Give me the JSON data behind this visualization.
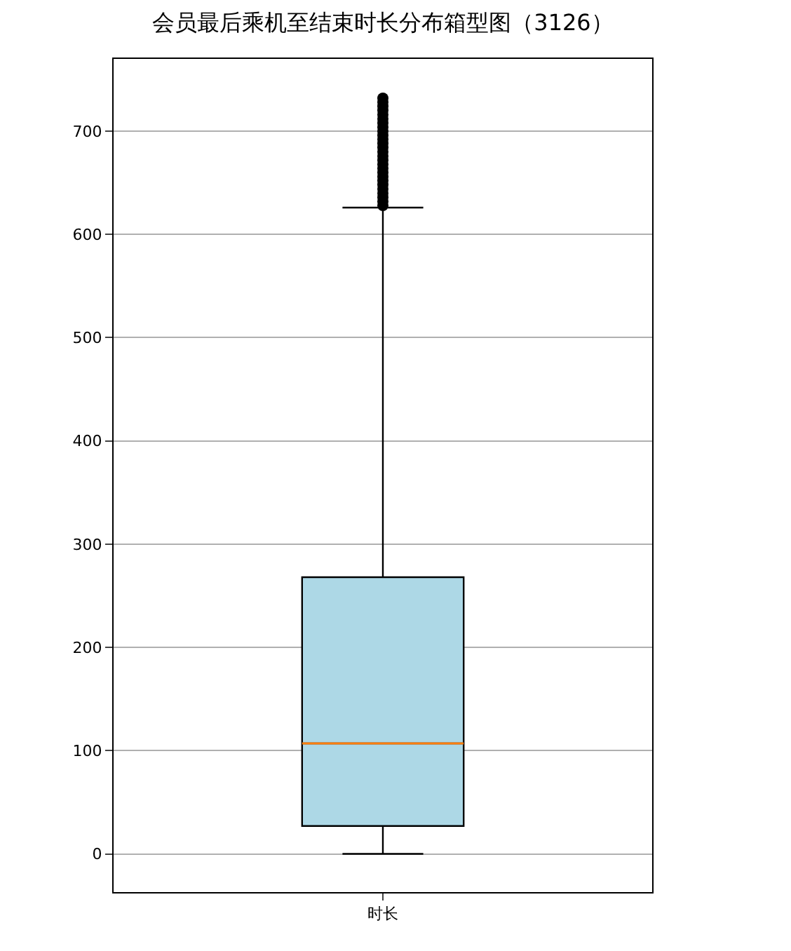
{
  "chart_data": {
    "type": "box",
    "title": "会员最后乘机至结束时长分布箱型图（3126）",
    "categories": [
      "时长"
    ],
    "boxes": [
      {
        "low": 0,
        "q1": 27,
        "median": 107,
        "q3": 268,
        "high": 626,
        "outliers": [
          628,
          632,
          636,
          640,
          644,
          648,
          652,
          656,
          660,
          664,
          668,
          672,
          676,
          680,
          684,
          688,
          692,
          696,
          700,
          704,
          708,
          712,
          716,
          720,
          724,
          728,
          732
        ]
      }
    ],
    "color": "#add8e6",
    "ylim": [
      -37,
      770
    ],
    "yticks": [
      0,
      100,
      200,
      300,
      400,
      500,
      600,
      700
    ],
    "grid": "y"
  }
}
